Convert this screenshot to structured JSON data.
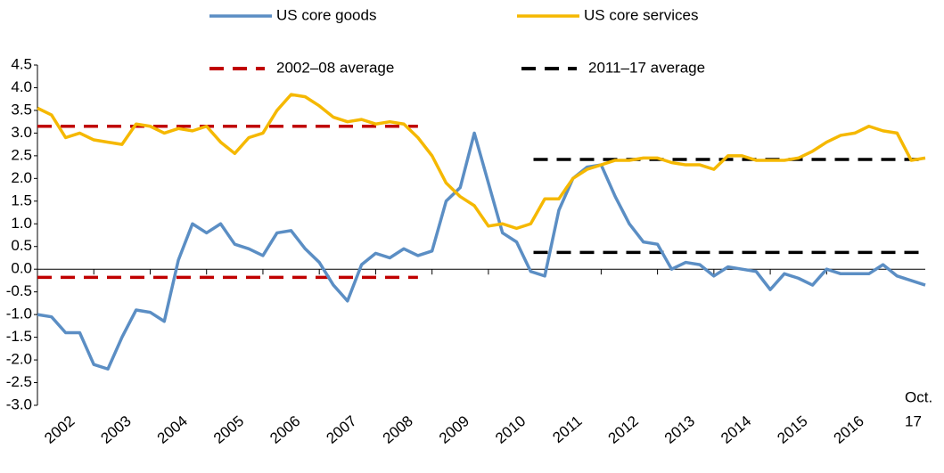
{
  "chart_data": {
    "type": "line",
    "x": [
      2002,
      2002.25,
      2002.5,
      2002.75,
      2003,
      2003.25,
      2003.5,
      2003.75,
      2004,
      2004.25,
      2004.5,
      2004.75,
      2005,
      2005.25,
      2005.5,
      2005.75,
      2006,
      2006.25,
      2006.5,
      2006.75,
      2007,
      2007.25,
      2007.5,
      2007.75,
      2008,
      2008.25,
      2008.5,
      2008.75,
      2009,
      2009.25,
      2009.5,
      2009.75,
      2010,
      2010.25,
      2010.5,
      2010.75,
      2011,
      2011.25,
      2011.5,
      2011.75,
      2012,
      2012.25,
      2012.5,
      2012.75,
      2013,
      2013.25,
      2013.5,
      2013.75,
      2014,
      2014.25,
      2014.5,
      2014.75,
      2015,
      2015.25,
      2015.5,
      2015.75,
      2016,
      2016.25,
      2016.5,
      2016.75,
      2017,
      2017.25,
      2017.5,
      2017.75
    ],
    "series": [
      {
        "name": "US core goods",
        "color": "#5b8ec4",
        "values": [
          -1.0,
          -1.05,
          -1.4,
          -1.4,
          -2.1,
          -2.2,
          -1.5,
          -0.9,
          -0.95,
          -1.15,
          0.2,
          1.0,
          0.8,
          1.0,
          0.55,
          0.45,
          0.3,
          0.8,
          0.85,
          0.45,
          0.15,
          -0.35,
          -0.7,
          0.1,
          0.35,
          0.25,
          0.45,
          0.3,
          0.4,
          1.5,
          1.8,
          3.0,
          1.9,
          0.8,
          0.6,
          -0.05,
          -0.15,
          1.3,
          2.0,
          2.25,
          2.3,
          1.6,
          1.0,
          0.6,
          0.55,
          0.0,
          0.15,
          0.1,
          -0.15,
          0.05,
          0.0,
          -0.05,
          -0.45,
          -0.1,
          -0.2,
          -0.35,
          0.0,
          -0.1,
          -0.1,
          -0.1,
          0.1,
          -0.15,
          -0.25,
          -0.35
        ]
      },
      {
        "name": "US core services",
        "color": "#f5b800",
        "values": [
          3.55,
          3.4,
          2.9,
          3.0,
          2.85,
          2.8,
          2.75,
          3.2,
          3.15,
          3.0,
          3.1,
          3.05,
          3.15,
          2.8,
          2.55,
          2.9,
          3.0,
          3.5,
          3.85,
          3.8,
          3.6,
          3.35,
          3.25,
          3.3,
          3.2,
          3.25,
          3.2,
          2.9,
          2.5,
          1.9,
          1.6,
          1.4,
          0.95,
          1.0,
          0.9,
          1.0,
          1.55,
          1.55,
          2.0,
          2.2,
          2.3,
          2.4,
          2.4,
          2.45,
          2.45,
          2.35,
          2.3,
          2.3,
          2.2,
          2.5,
          2.5,
          2.4,
          2.4,
          2.4,
          2.45,
          2.6,
          2.8,
          2.95,
          3.0,
          3.15,
          3.05,
          3.0,
          2.4,
          2.45
        ]
      }
    ],
    "reference_lines": [
      {
        "name": "2002–08 average",
        "color": "#c00000",
        "x": [
          2002,
          2008.75
        ],
        "values": [
          3.15,
          -0.18
        ]
      },
      {
        "name": "2011–17 average",
        "color": "#000000",
        "x": [
          2010.8,
          2017.75
        ],
        "values": [
          2.42,
          0.37
        ]
      }
    ],
    "annotation": [
      "Oct.",
      "17"
    ],
    "xlim": [
      2002,
      2017.75
    ],
    "xticks": [
      2002,
      2003,
      2004,
      2005,
      2006,
      2007,
      2008,
      2009,
      2010,
      2011,
      2012,
      2013,
      2014,
      2015,
      2016
    ],
    "ylim": [
      -3,
      4.5
    ],
    "yticks": [
      4.5,
      {
        "value": 4,
        "label": "4.0"
      },
      3.5,
      {
        "value": 3,
        "label": "3.0"
      },
      2.5,
      {
        "value": 2,
        "label": "2.0"
      },
      1.5,
      {
        "value": 1,
        "label": "1.0"
      },
      0.5,
      {
        "value": 0,
        "label": "0.0"
      },
      -0.5,
      {
        "value": -1,
        "label": "-1.0"
      },
      -1.5,
      {
        "value": -2,
        "label": "-2.0"
      },
      -2.5,
      {
        "value": -3,
        "label": "-3.0"
      }
    ]
  }
}
